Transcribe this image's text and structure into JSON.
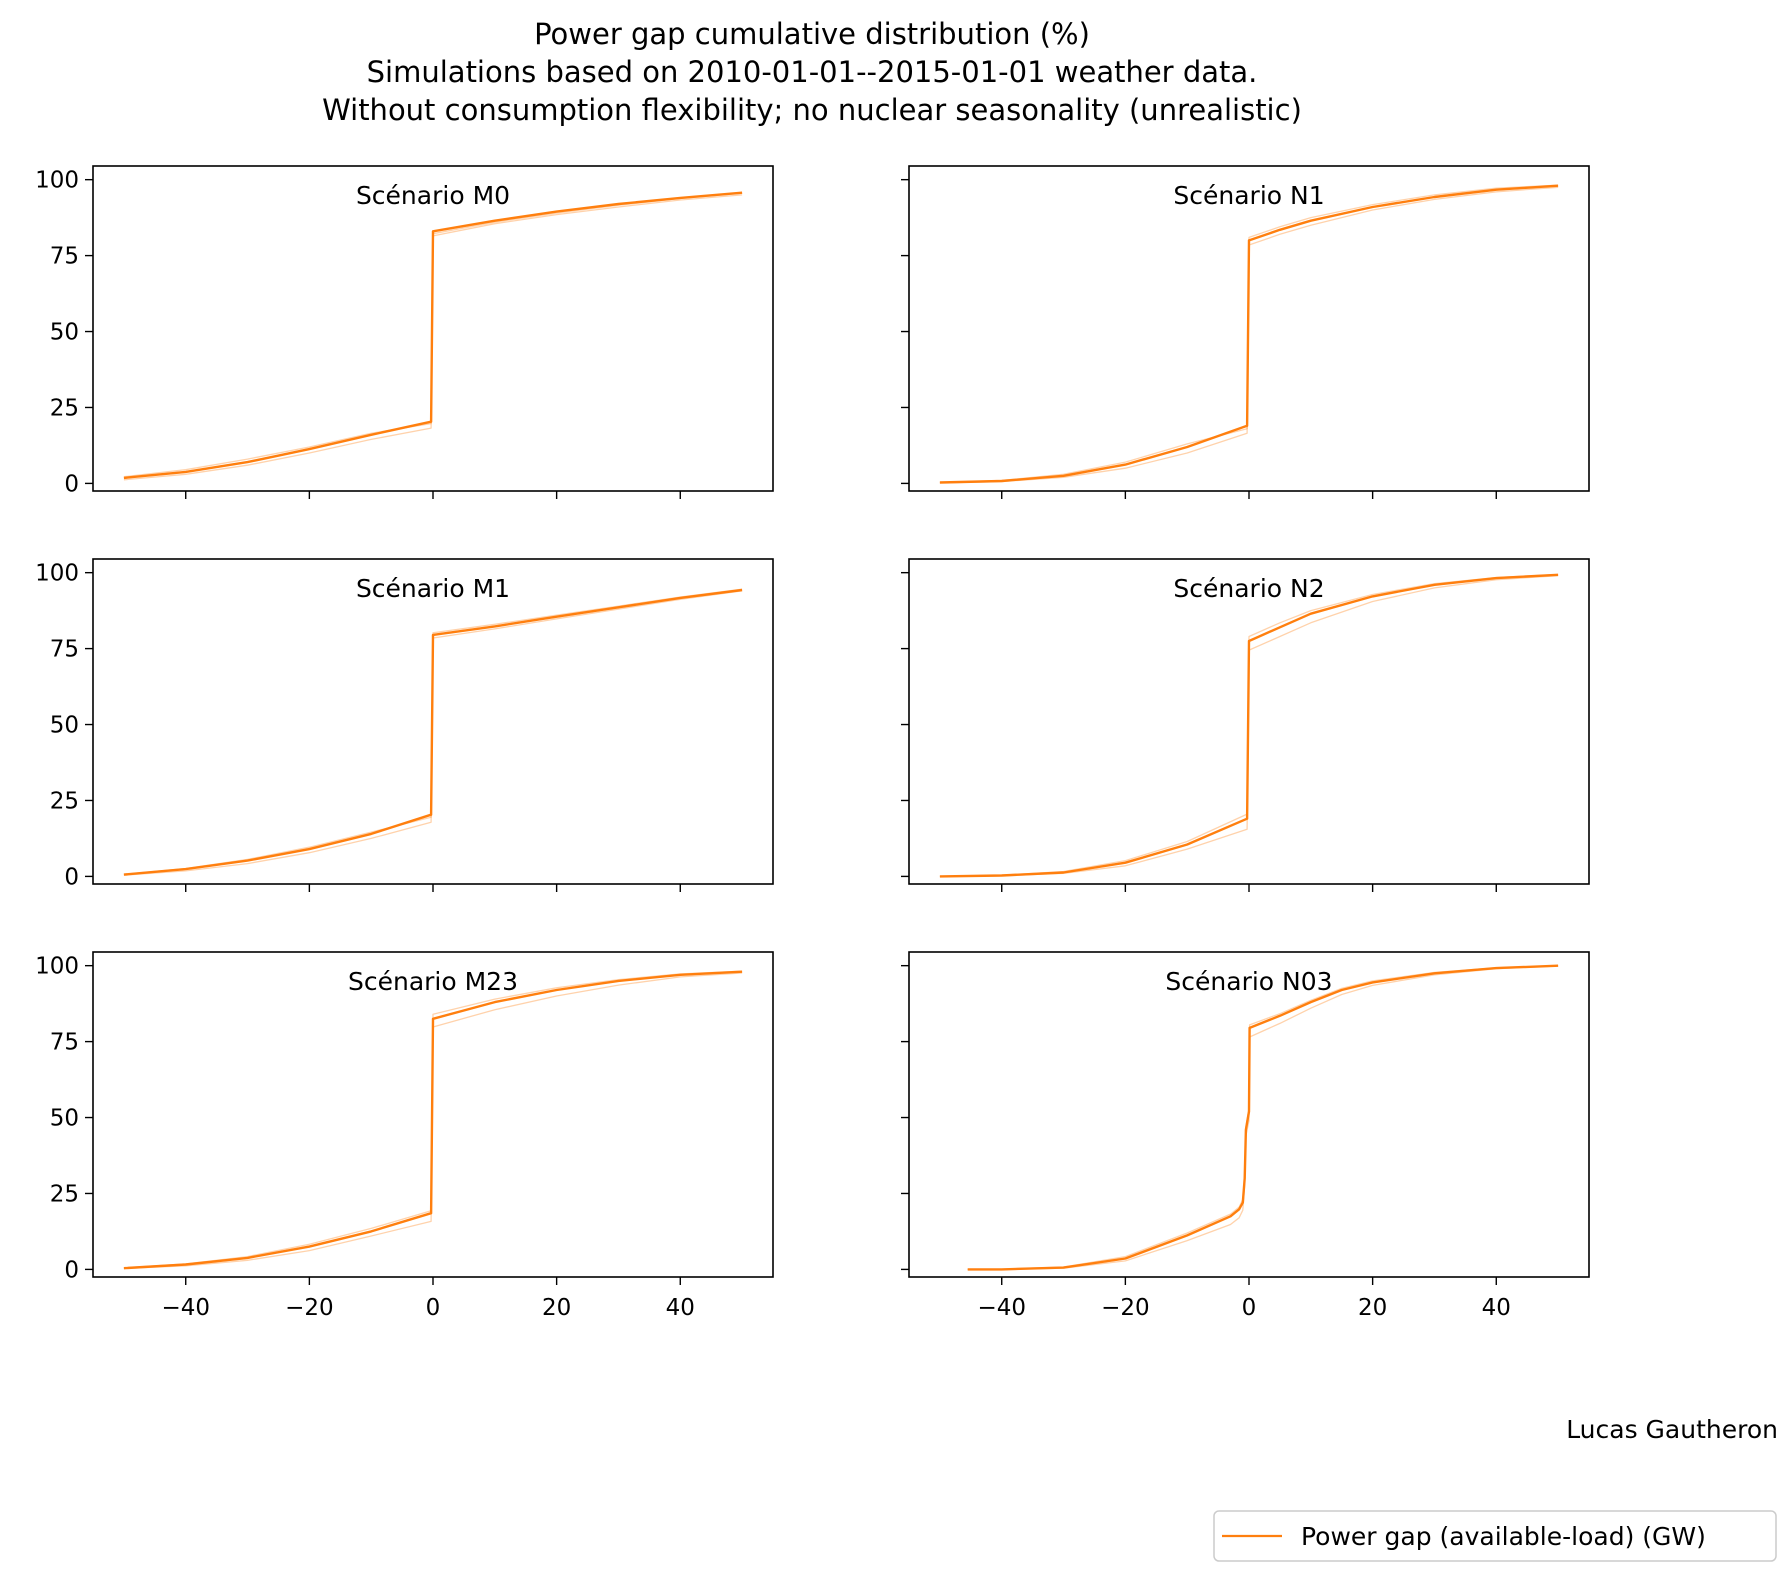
{
  "chart_data": {
    "type": "line",
    "title_lines": [
      "Power gap cumulative distribution (%)",
      "Simulations based on 2010-01-01--2015-01-01 weather data.",
      "Without consumption flexibility; no nuclear seasonality (unrealistic)"
    ],
    "credit": "Lucas Gautheron",
    "legend": {
      "label": "Power gap (available-load) (GW)",
      "placement": "bottom-right"
    },
    "series_color": "#ff7f0e",
    "xlim": [
      -55,
      55
    ],
    "ylim": [
      -2.5,
      104.5
    ],
    "xticks": [
      -40,
      -20,
      0,
      20,
      40
    ],
    "xtick_labels": [
      "−40",
      "−20",
      "0",
      "20",
      "40"
    ],
    "yticks": [
      0,
      25,
      50,
      75,
      100
    ],
    "ytick_labels": [
      "0",
      "25",
      "50",
      "75",
      "100"
    ],
    "panels": [
      {
        "title": "Scénario M0",
        "main": [
          [
            -50,
            1.8
          ],
          [
            -40,
            3.8
          ],
          [
            -30,
            7
          ],
          [
            -20,
            11.3
          ],
          [
            -10,
            16
          ],
          [
            -0.3,
            20.3
          ],
          [
            0,
            83
          ],
          [
            10,
            86.5
          ],
          [
            20,
            89.5
          ],
          [
            30,
            92
          ],
          [
            40,
            94
          ],
          [
            50,
            95.7
          ]
        ],
        "faint": [
          [
            [
              -50,
              1.2
            ],
            [
              -40,
              3
            ],
            [
              -30,
              6
            ],
            [
              -20,
              10
            ],
            [
              -10,
              14.5
            ],
            [
              -0.3,
              18.2
            ],
            [
              0,
              81.5
            ],
            [
              10,
              85.5
            ],
            [
              20,
              88.5
            ],
            [
              30,
              91
            ],
            [
              40,
              93.3
            ],
            [
              50,
              95
            ]
          ],
          [
            [
              -50,
              2.2
            ],
            [
              -40,
              4.5
            ],
            [
              -30,
              8
            ],
            [
              -20,
              12
            ],
            [
              -10,
              16.5
            ],
            [
              -0.3,
              19.7
            ],
            [
              0,
              82.2
            ],
            [
              10,
              86
            ],
            [
              20,
              89
            ],
            [
              30,
              91.6
            ],
            [
              40,
              93.8
            ],
            [
              50,
              95.5
            ]
          ]
        ]
      },
      {
        "title": "Scénario N1",
        "main": [
          [
            -50,
            0.3
          ],
          [
            -40,
            0.8
          ],
          [
            -30,
            2.5
          ],
          [
            -20,
            6.2
          ],
          [
            -10,
            12
          ],
          [
            -0.3,
            19
          ],
          [
            0,
            80
          ],
          [
            5,
            83.5
          ],
          [
            10,
            86.5
          ],
          [
            20,
            91
          ],
          [
            30,
            94.3
          ],
          [
            40,
            96.7
          ],
          [
            50,
            98
          ]
        ],
        "faint": [
          [
            [
              -50,
              0.2
            ],
            [
              -40,
              0.6
            ],
            [
              -30,
              2
            ],
            [
              -20,
              5
            ],
            [
              -10,
              10
            ],
            [
              -0.3,
              16.5
            ],
            [
              0,
              78.5
            ],
            [
              5,
              82
            ],
            [
              10,
              85
            ],
            [
              20,
              90
            ],
            [
              30,
              93.5
            ],
            [
              40,
              96
            ],
            [
              50,
              97.5
            ]
          ],
          [
            [
              -50,
              0.3
            ],
            [
              -40,
              1
            ],
            [
              -30,
              3
            ],
            [
              -20,
              7
            ],
            [
              -10,
              13
            ],
            [
              -0.3,
              18
            ],
            [
              0,
              81
            ],
            [
              5,
              84.5
            ],
            [
              10,
              87.5
            ],
            [
              20,
              91.8
            ],
            [
              30,
              95
            ],
            [
              40,
              97.2
            ],
            [
              50,
              98.2
            ]
          ]
        ]
      },
      {
        "title": "Scénario M1",
        "main": [
          [
            -50,
            0.6
          ],
          [
            -40,
            2.4
          ],
          [
            -30,
            5.2
          ],
          [
            -20,
            9
          ],
          [
            -10,
            14
          ],
          [
            -0.3,
            20.3
          ],
          [
            0,
            79.5
          ],
          [
            10,
            82.3
          ],
          [
            20,
            85.5
          ],
          [
            30,
            88.6
          ],
          [
            40,
            91.7
          ],
          [
            50,
            94.3
          ]
        ],
        "faint": [
          [
            [
              -50,
              0.4
            ],
            [
              -40,
              1.8
            ],
            [
              -30,
              4.2
            ],
            [
              -20,
              7.8
            ],
            [
              -10,
              12.5
            ],
            [
              -0.3,
              17.8
            ],
            [
              0,
              78.5
            ],
            [
              10,
              81.5
            ],
            [
              20,
              84.8
            ],
            [
              30,
              88
            ],
            [
              40,
              91.2
            ],
            [
              50,
              94
            ]
          ],
          [
            [
              -50,
              0.7
            ],
            [
              -40,
              2.6
            ],
            [
              -30,
              5.6
            ],
            [
              -20,
              9.6
            ],
            [
              -10,
              14.6
            ],
            [
              -0.3,
              19.5
            ],
            [
              0,
              80.2
            ],
            [
              10,
              83
            ],
            [
              20,
              86
            ],
            [
              30,
              89
            ],
            [
              40,
              92
            ],
            [
              50,
              94.6
            ]
          ]
        ]
      },
      {
        "title": "Scénario N2",
        "main": [
          [
            -50,
            0
          ],
          [
            -40,
            0.3
          ],
          [
            -30,
            1.3
          ],
          [
            -20,
            4.5
          ],
          [
            -10,
            10.5
          ],
          [
            -0.3,
            19
          ],
          [
            0,
            77.5
          ],
          [
            5,
            82
          ],
          [
            10,
            86.5
          ],
          [
            20,
            92.2
          ],
          [
            30,
            96
          ],
          [
            40,
            98.2
          ],
          [
            50,
            99.3
          ]
        ],
        "faint": [
          [
            [
              -50,
              0
            ],
            [
              -40,
              0.2
            ],
            [
              -30,
              1
            ],
            [
              -20,
              3.5
            ],
            [
              -10,
              9
            ],
            [
              -0.3,
              15.5
            ],
            [
              0,
              74.5
            ],
            [
              5,
              79
            ],
            [
              10,
              83.5
            ],
            [
              20,
              90.5
            ],
            [
              30,
              95
            ],
            [
              40,
              97.7
            ],
            [
              50,
              99
            ]
          ],
          [
            [
              -50,
              0
            ],
            [
              -40,
              0.4
            ],
            [
              -30,
              1.6
            ],
            [
              -20,
              5.2
            ],
            [
              -10,
              11.5
            ],
            [
              -0.3,
              20.5
            ],
            [
              0,
              79
            ],
            [
              5,
              83.5
            ],
            [
              10,
              87.5
            ],
            [
              20,
              92.8
            ],
            [
              30,
              96.4
            ],
            [
              40,
              98.4
            ],
            [
              50,
              99.4
            ]
          ]
        ]
      },
      {
        "title": "Scénario M23",
        "main": [
          [
            -50,
            0.4
          ],
          [
            -40,
            1.6
          ],
          [
            -30,
            3.8
          ],
          [
            -20,
            7.5
          ],
          [
            -10,
            12.5
          ],
          [
            -0.3,
            18.5
          ],
          [
            0,
            82.5
          ],
          [
            10,
            88
          ],
          [
            20,
            92
          ],
          [
            30,
            95
          ],
          [
            40,
            97
          ],
          [
            50,
            98
          ]
        ],
        "faint": [
          [
            [
              -50,
              0.3
            ],
            [
              -40,
              1.2
            ],
            [
              -30,
              3
            ],
            [
              -20,
              6.2
            ],
            [
              -10,
              11
            ],
            [
              -0.3,
              15.8
            ],
            [
              0,
              79.8
            ],
            [
              10,
              85.5
            ],
            [
              20,
              90
            ],
            [
              30,
              93.6
            ],
            [
              40,
              96.3
            ],
            [
              50,
              97.6
            ]
          ],
          [
            [
              -50,
              0.5
            ],
            [
              -40,
              1.8
            ],
            [
              -30,
              4.2
            ],
            [
              -20,
              8.3
            ],
            [
              -10,
              13.5
            ],
            [
              -0.3,
              19.3
            ],
            [
              0,
              84
            ],
            [
              10,
              89
            ],
            [
              20,
              92.7
            ],
            [
              30,
              95.4
            ],
            [
              40,
              97.3
            ],
            [
              50,
              98.2
            ]
          ]
        ]
      },
      {
        "title": "Scénario N03",
        "main": [
          [
            -45.5,
            0
          ],
          [
            -40,
            0
          ],
          [
            -30,
            0.6
          ],
          [
            -20,
            3.6
          ],
          [
            -10,
            11.2
          ],
          [
            -3,
            17.5
          ],
          [
            -1.6,
            19.8
          ],
          [
            -1,
            22
          ],
          [
            -0.7,
            30
          ],
          [
            -0.5,
            46
          ],
          [
            0,
            52
          ],
          [
            0.1,
            79.5
          ],
          [
            5,
            83.5
          ],
          [
            10,
            88
          ],
          [
            15,
            92
          ],
          [
            20,
            94.5
          ],
          [
            30,
            97.5
          ],
          [
            40,
            99.2
          ],
          [
            50,
            100
          ]
        ],
        "faint": [
          [
            [
              -45.5,
              0
            ],
            [
              -40,
              0
            ],
            [
              -30,
              0.4
            ],
            [
              -20,
              2.8
            ],
            [
              -10,
              9.5
            ],
            [
              -3,
              14.8
            ],
            [
              -1.6,
              17
            ],
            [
              -1,
              19.5
            ],
            [
              -0.7,
              28
            ],
            [
              -0.5,
              44
            ],
            [
              0,
              49
            ],
            [
              0.1,
              76.5
            ],
            [
              5,
              81
            ],
            [
              10,
              86
            ],
            [
              15,
              90.5
            ],
            [
              20,
              93.5
            ],
            [
              30,
              97
            ],
            [
              40,
              99
            ],
            [
              50,
              99.9
            ]
          ],
          [
            [
              -45.5,
              0
            ],
            [
              -40,
              0.1
            ],
            [
              -30,
              0.8
            ],
            [
              -20,
              4.2
            ],
            [
              -10,
              12
            ],
            [
              -3,
              18.2
            ],
            [
              -1.6,
              20.5
            ],
            [
              -1,
              23
            ],
            [
              -0.7,
              31
            ],
            [
              -0.5,
              47
            ],
            [
              0,
              53
            ],
            [
              0.1,
              80.5
            ],
            [
              5,
              84.2
            ],
            [
              10,
              88.6
            ],
            [
              15,
              92.5
            ],
            [
              20,
              95
            ],
            [
              30,
              97.8
            ],
            [
              40,
              99.3
            ],
            [
              50,
              100
            ]
          ]
        ]
      }
    ]
  }
}
